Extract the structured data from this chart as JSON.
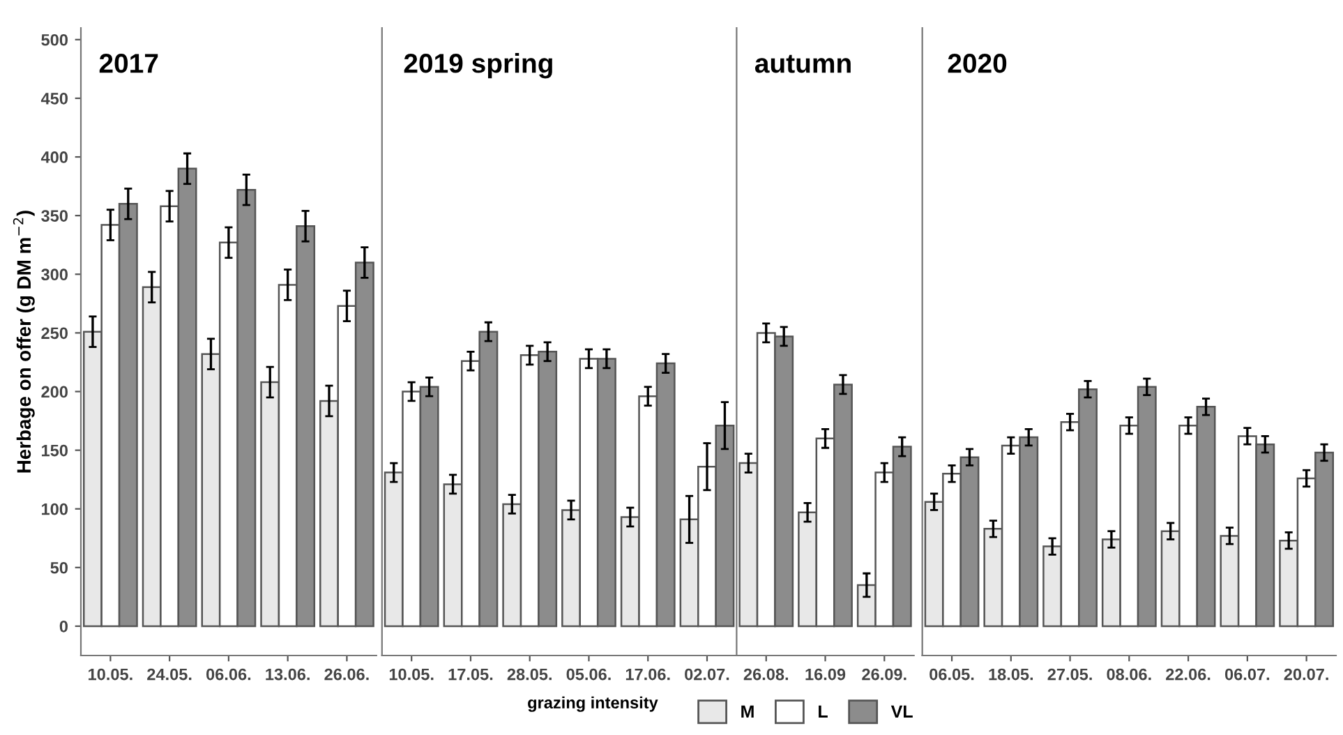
{
  "chart_data": [
    {
      "type": "bar",
      "title": "2017",
      "ylabel": "Herbage on offer (g DM m$^{−2}$)",
      "legend_title": "grazing intensity",
      "legend": "bottom",
      "ylim": [
        -25,
        510
      ],
      "yticks": [
        0,
        50,
        100,
        150,
        200,
        250,
        300,
        350,
        400,
        450,
        500
      ],
      "categories": [
        "10.05.",
        "24.05.",
        "06.06.",
        "13.06.",
        "26.06."
      ],
      "series": [
        {
          "name": "M",
          "color": "#e8e8e8",
          "values": [
            251,
            289,
            232,
            208,
            192
          ],
          "errors": [
            13,
            13,
            13,
            13,
            13
          ]
        },
        {
          "name": "L",
          "color": "#ffffff",
          "values": [
            342,
            358,
            327,
            291,
            273
          ],
          "errors": [
            13,
            13,
            13,
            13,
            13
          ]
        },
        {
          "name": "VL",
          "color": "#8c8c8c",
          "values": [
            360,
            390,
            372,
            341,
            310
          ],
          "errors": [
            13,
            13,
            13,
            13,
            13
          ]
        }
      ]
    },
    {
      "type": "bar",
      "title": "2019 spring",
      "ylim": [
        -25,
        510
      ],
      "tick_labels": "x",
      "categories": [
        "10.05.",
        "17.05.",
        "28.05.",
        "05.06.",
        "17.06.",
        "02.07."
      ],
      "series": [
        {
          "color": "#e8e8e8",
          "values": [
            131,
            121,
            104,
            99,
            93,
            91
          ],
          "errors": [
            8,
            8,
            8,
            8,
            8,
            20
          ]
        },
        {
          "color": "#ffffff",
          "values": [
            200,
            226,
            231,
            228,
            196,
            136
          ],
          "errors": [
            8,
            8,
            8,
            8,
            8,
            20
          ]
        },
        {
          "color": "#8c8c8c",
          "values": [
            204,
            251,
            234,
            228,
            224,
            171
          ],
          "errors": [
            8,
            8,
            8,
            8,
            8,
            20
          ]
        }
      ]
    },
    {
      "type": "bar",
      "title": "autumn",
      "ylim": [
        -25,
        510
      ],
      "tick_labels": "x",
      "categories": [
        "26.08.",
        "16.09",
        "26.09."
      ],
      "series": [
        {
          "color": "#e8e8e8",
          "values": [
            139,
            97,
            35
          ],
          "errors": [
            8,
            8,
            10
          ]
        },
        {
          "color": "#ffffff",
          "values": [
            250,
            160,
            131
          ],
          "errors": [
            8,
            8,
            8
          ]
        },
        {
          "color": "#8c8c8c",
          "values": [
            247,
            206,
            153
          ],
          "errors": [
            8,
            8,
            8
          ]
        }
      ]
    },
    {
      "type": "bar",
      "title": "2020",
      "ylim": [
        -25,
        510
      ],
      "tick_labels": "x",
      "categories": [
        "06.05.",
        "18.05.",
        "27.05.",
        "08.06.",
        "22.06.",
        "06.07.",
        "20.07."
      ],
      "series": [
        {
          "color": "#e8e8e8",
          "values": [
            106,
            83,
            68,
            74,
            81,
            77,
            73
          ],
          "errors": [
            7,
            7,
            7,
            7,
            7,
            7,
            7
          ]
        },
        {
          "color": "#ffffff",
          "values": [
            130,
            154,
            174,
            171,
            171,
            162,
            126
          ],
          "errors": [
            7,
            7,
            7,
            7,
            7,
            7,
            7
          ]
        },
        {
          "color": "#8c8c8c",
          "values": [
            144,
            161,
            202,
            204,
            187,
            155,
            148
          ],
          "errors": [
            7,
            7,
            7,
            7,
            7,
            7,
            7
          ]
        }
      ]
    }
  ]
}
